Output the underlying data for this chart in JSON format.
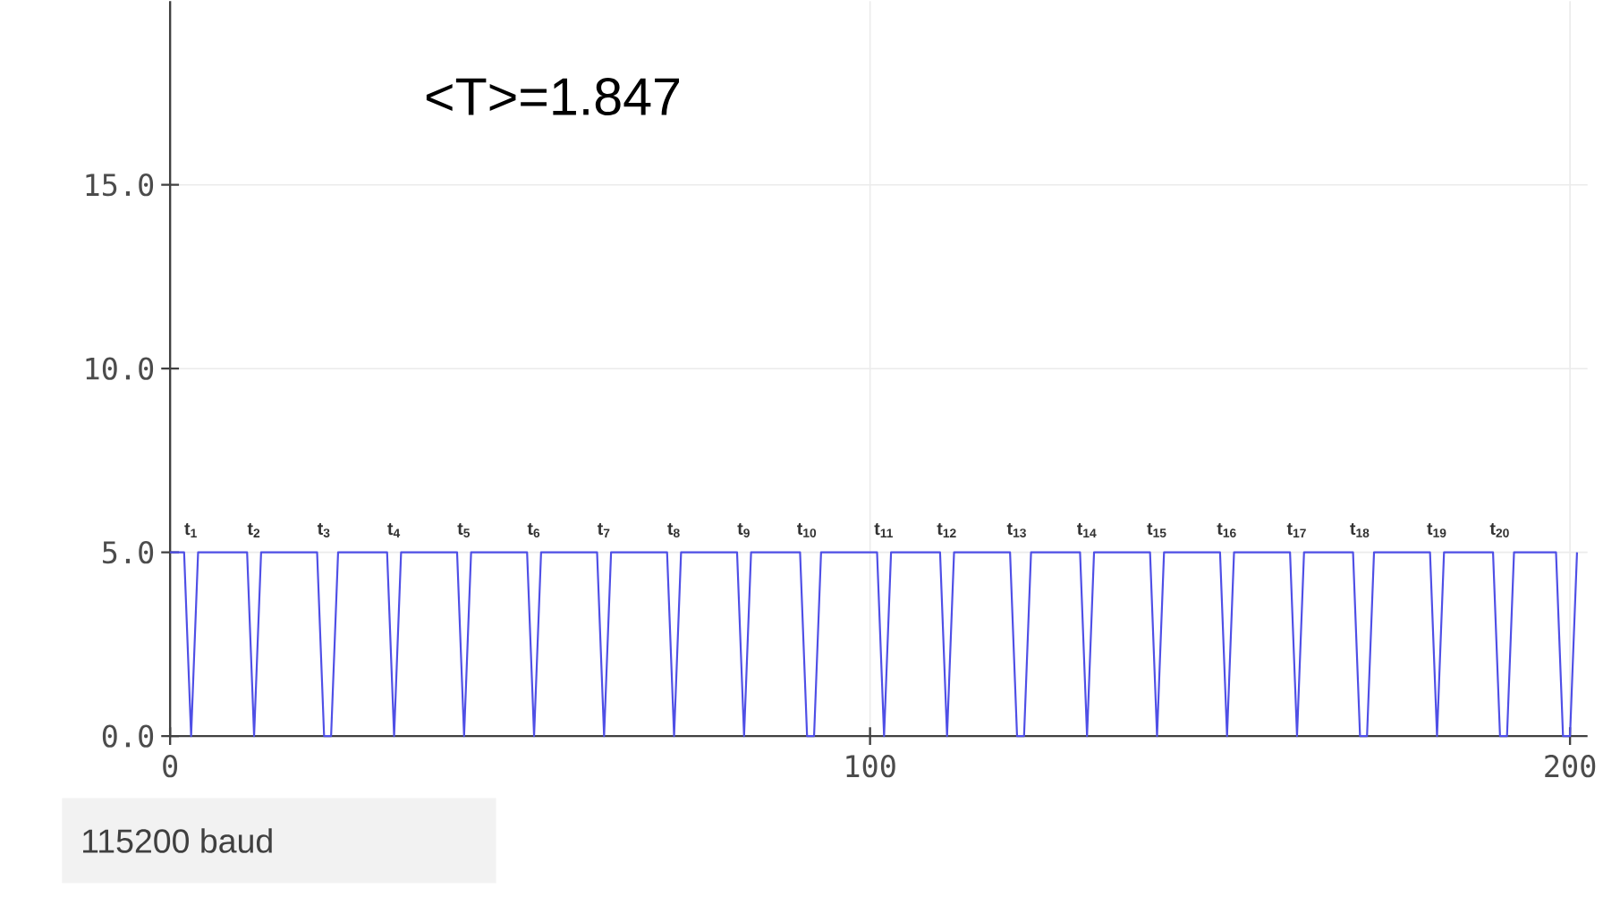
{
  "chart_data": {
    "type": "line",
    "color": "#4f4fe6",
    "marker": "none",
    "line_style": "solid",
    "grid": true,
    "x": [
      0,
      2,
      3,
      4,
      11,
      12,
      13,
      21,
      22,
      23,
      24,
      31,
      32,
      33,
      41,
      42,
      43,
      51,
      52,
      53,
      61,
      62,
      63,
      71,
      72,
      73,
      81,
      82,
      83,
      90,
      91,
      92,
      93,
      101,
      102,
      103,
      110,
      111,
      112,
      120,
      121,
      122,
      123,
      130,
      131,
      132,
      140,
      141,
      142,
      150,
      151,
      152,
      160,
      161,
      162,
      169,
      170,
      171,
      172,
      180,
      181,
      182,
      189,
      190,
      191,
      192,
      198,
      199,
      200,
      201
    ],
    "values": [
      5,
      5,
      0,
      5,
      5,
      0,
      5,
      5,
      0,
      0,
      5,
      5,
      0,
      5,
      5,
      0,
      5,
      5,
      0,
      5,
      5,
      0,
      5,
      5,
      0,
      5,
      5,
      0,
      5,
      5,
      0,
      0,
      5,
      5,
      0,
      5,
      5,
      0,
      5,
      5,
      0,
      0,
      5,
      5,
      0,
      5,
      5,
      0,
      5,
      5,
      0,
      5,
      5,
      0,
      5,
      5,
      0,
      0,
      5,
      5,
      0,
      5,
      5,
      0,
      0,
      5,
      5,
      0,
      0,
      5
    ],
    "xlim": [
      0,
      202.5
    ],
    "ylim": [
      0,
      20
    ],
    "xticks": [
      0,
      100,
      200
    ],
    "yticks": [
      {
        "value": 0,
        "label": "0.0"
      },
      {
        "value": 5,
        "label": "5.0"
      },
      {
        "value": 10,
        "label": "10.0"
      },
      {
        "value": 15,
        "label": "15.0"
      }
    ],
    "annotations": [
      "<T>=1.847",
      "115200 baud",
      "t$_{1}$",
      "t$_{2}$",
      "t$_{3}$",
      "t$_{4}$",
      "t$_{5}$",
      "t$_{6}$",
      "t$_{7}$",
      "t$_{8}$",
      "t$_{9}$",
      "t$_{10}$",
      "t$_{11}$",
      "t$_{12}$",
      "t$_{13}$",
      "t$_{14}$",
      "t$_{15}$",
      "t$_{16}$",
      "t$_{17}$",
      "t$_{18}$",
      "t$_{19}$",
      "t$_{20}$"
    ]
  }
}
